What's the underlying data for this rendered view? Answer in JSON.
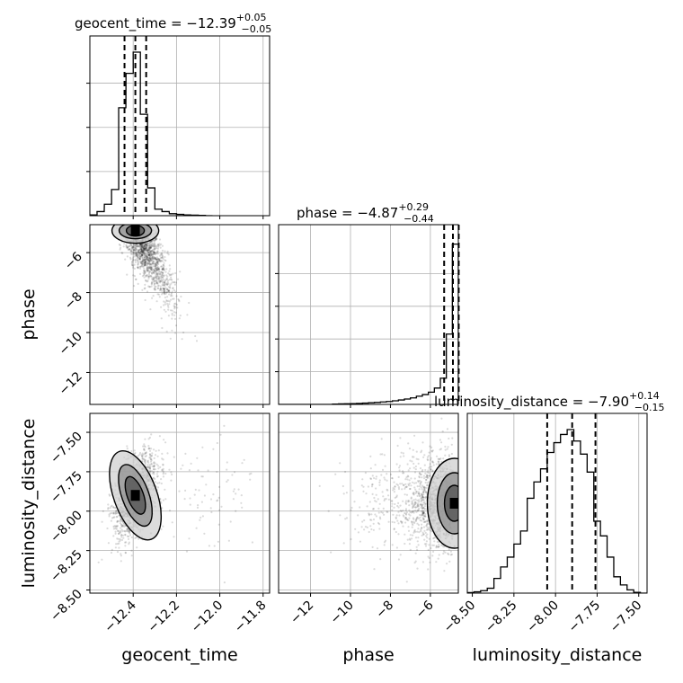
{
  "chart_data": {
    "type": "corner",
    "parameters": [
      {
        "key": "geocent_time",
        "label": "geocent_time",
        "title_prefix": "geocent_time = −12.39",
        "title_plus": "+0.05",
        "title_minus": "−0.05",
        "range": [
          -12.6,
          -11.77
        ],
        "ticks": [
          -12.4,
          -12.2,
          -12.0,
          -11.8
        ],
        "tick_labels": [
          "−12.4",
          "−12.2",
          "−12.0",
          "−11.8"
        ],
        "quantiles": [
          -12.44,
          -12.39,
          -12.34
        ],
        "hist": {
          "bin_width": 0.0333,
          "bins": [
            -12.6,
            -12.567,
            -12.533,
            -12.5,
            -12.467,
            -12.433,
            -12.4,
            -12.367,
            -12.333,
            -12.3,
            -12.267,
            -12.233,
            -12.2,
            -12.167,
            -12.133,
            -12.1,
            -12.067
          ],
          "counts": [
            0.005,
            0.025,
            0.07,
            0.16,
            0.66,
            0.87,
            1.0,
            0.62,
            0.17,
            0.04,
            0.025,
            0.012,
            0.008,
            0.005,
            0.003,
            0.002,
            0
          ],
          "y_ticks": [
            0.27,
            0.54,
            0.81
          ]
        }
      },
      {
        "key": "phase",
        "label": "phase",
        "title_prefix": "phase = −4.87",
        "title_plus": "+0.29",
        "title_minus": "−0.44",
        "range": [
          -13.6,
          -4.6
        ],
        "ticks": [
          -12,
          -10,
          -8,
          -6
        ],
        "tick_labels": [
          "−12",
          "−10",
          "−8",
          "−6"
        ],
        "quantiles": [
          -5.31,
          -4.87,
          -4.58
        ],
        "hist": {
          "bin_width": 0.3,
          "bins": [
            -13.6,
            -13.3,
            -13.0,
            -12.7,
            -12.4,
            -12.1,
            -11.8,
            -11.5,
            -11.2,
            -10.9,
            -10.6,
            -10.3,
            -10.0,
            -9.7,
            -9.4,
            -9.1,
            -8.8,
            -8.5,
            -8.2,
            -7.9,
            -7.6,
            -7.3,
            -7.0,
            -6.7,
            -6.4,
            -6.1,
            -5.8,
            -5.5,
            -5.2,
            -4.9
          ],
          "counts": [
            0,
            0,
            0,
            0,
            0,
            0,
            0,
            0,
            0,
            0.002,
            0.003,
            0.004,
            0.005,
            0.006,
            0.008,
            0.01,
            0.012,
            0.015,
            0.018,
            0.022,
            0.027,
            0.033,
            0.04,
            0.05,
            0.06,
            0.075,
            0.1,
            0.16,
            0.43,
            0.98
          ],
          "y_ticks": [
            0.2,
            0.4,
            0.6,
            0.8
          ]
        }
      },
      {
        "key": "luminosity_distance",
        "label": "luminosity_distance",
        "title_prefix": "luminosity_distance = −7.90",
        "title_plus": "+0.14",
        "title_minus": "−0.15",
        "range": [
          -8.53,
          -7.45
        ],
        "ticks": [
          -8.5,
          -8.25,
          -8.0,
          -7.75,
          -7.5
        ],
        "tick_labels": [
          "−8.50",
          "−8.25",
          "−8.00",
          "−7.75",
          "−7.50"
        ],
        "quantiles": [
          -8.05,
          -7.9,
          -7.76
        ],
        "hist": {
          "bin_width": 0.04,
          "bins": [
            -8.53,
            -8.49,
            -8.45,
            -8.41,
            -8.37,
            -8.33,
            -8.29,
            -8.25,
            -8.21,
            -8.17,
            -8.13,
            -8.09,
            -8.05,
            -8.01,
            -7.97,
            -7.93,
            -7.89,
            -7.85,
            -7.81,
            -7.77,
            -7.73,
            -7.69,
            -7.65,
            -7.61,
            -7.57,
            -7.53,
            -7.49
          ],
          "counts": [
            0.003,
            0.008,
            0.015,
            0.03,
            0.09,
            0.16,
            0.22,
            0.3,
            0.38,
            0.58,
            0.68,
            0.76,
            0.86,
            0.92,
            0.97,
            1.0,
            0.93,
            0.85,
            0.74,
            0.44,
            0.35,
            0.22,
            0.1,
            0.05,
            0.02,
            0.005,
            0
          ]
        }
      }
    ],
    "pairs": [
      {
        "x": "geocent_time",
        "y": "phase",
        "y_range": [
          -13.6,
          -4.6
        ],
        "y_ticks": [
          -12,
          -10,
          -8,
          -6
        ],
        "y_tick_labels": [
          "−12",
          "−10",
          "−8",
          "−6"
        ],
        "mode": [
          -12.39,
          -4.9
        ]
      },
      {
        "x": "geocent_time",
        "y": "luminosity_distance",
        "y_range": [
          -8.52,
          -7.38
        ],
        "y_ticks": [
          -8.5,
          -8.25,
          -8.0,
          -7.75,
          -7.5
        ],
        "y_tick_labels": [
          "−8.50",
          "−8.25",
          "−8.00",
          "−7.75",
          "−7.50"
        ],
        "mode": [
          -12.39,
          -7.9
        ]
      },
      {
        "x": "phase",
        "y": "luminosity_distance",
        "y_range": [
          -8.52,
          -7.38
        ],
        "mode": [
          -4.8,
          -7.95
        ]
      }
    ]
  }
}
